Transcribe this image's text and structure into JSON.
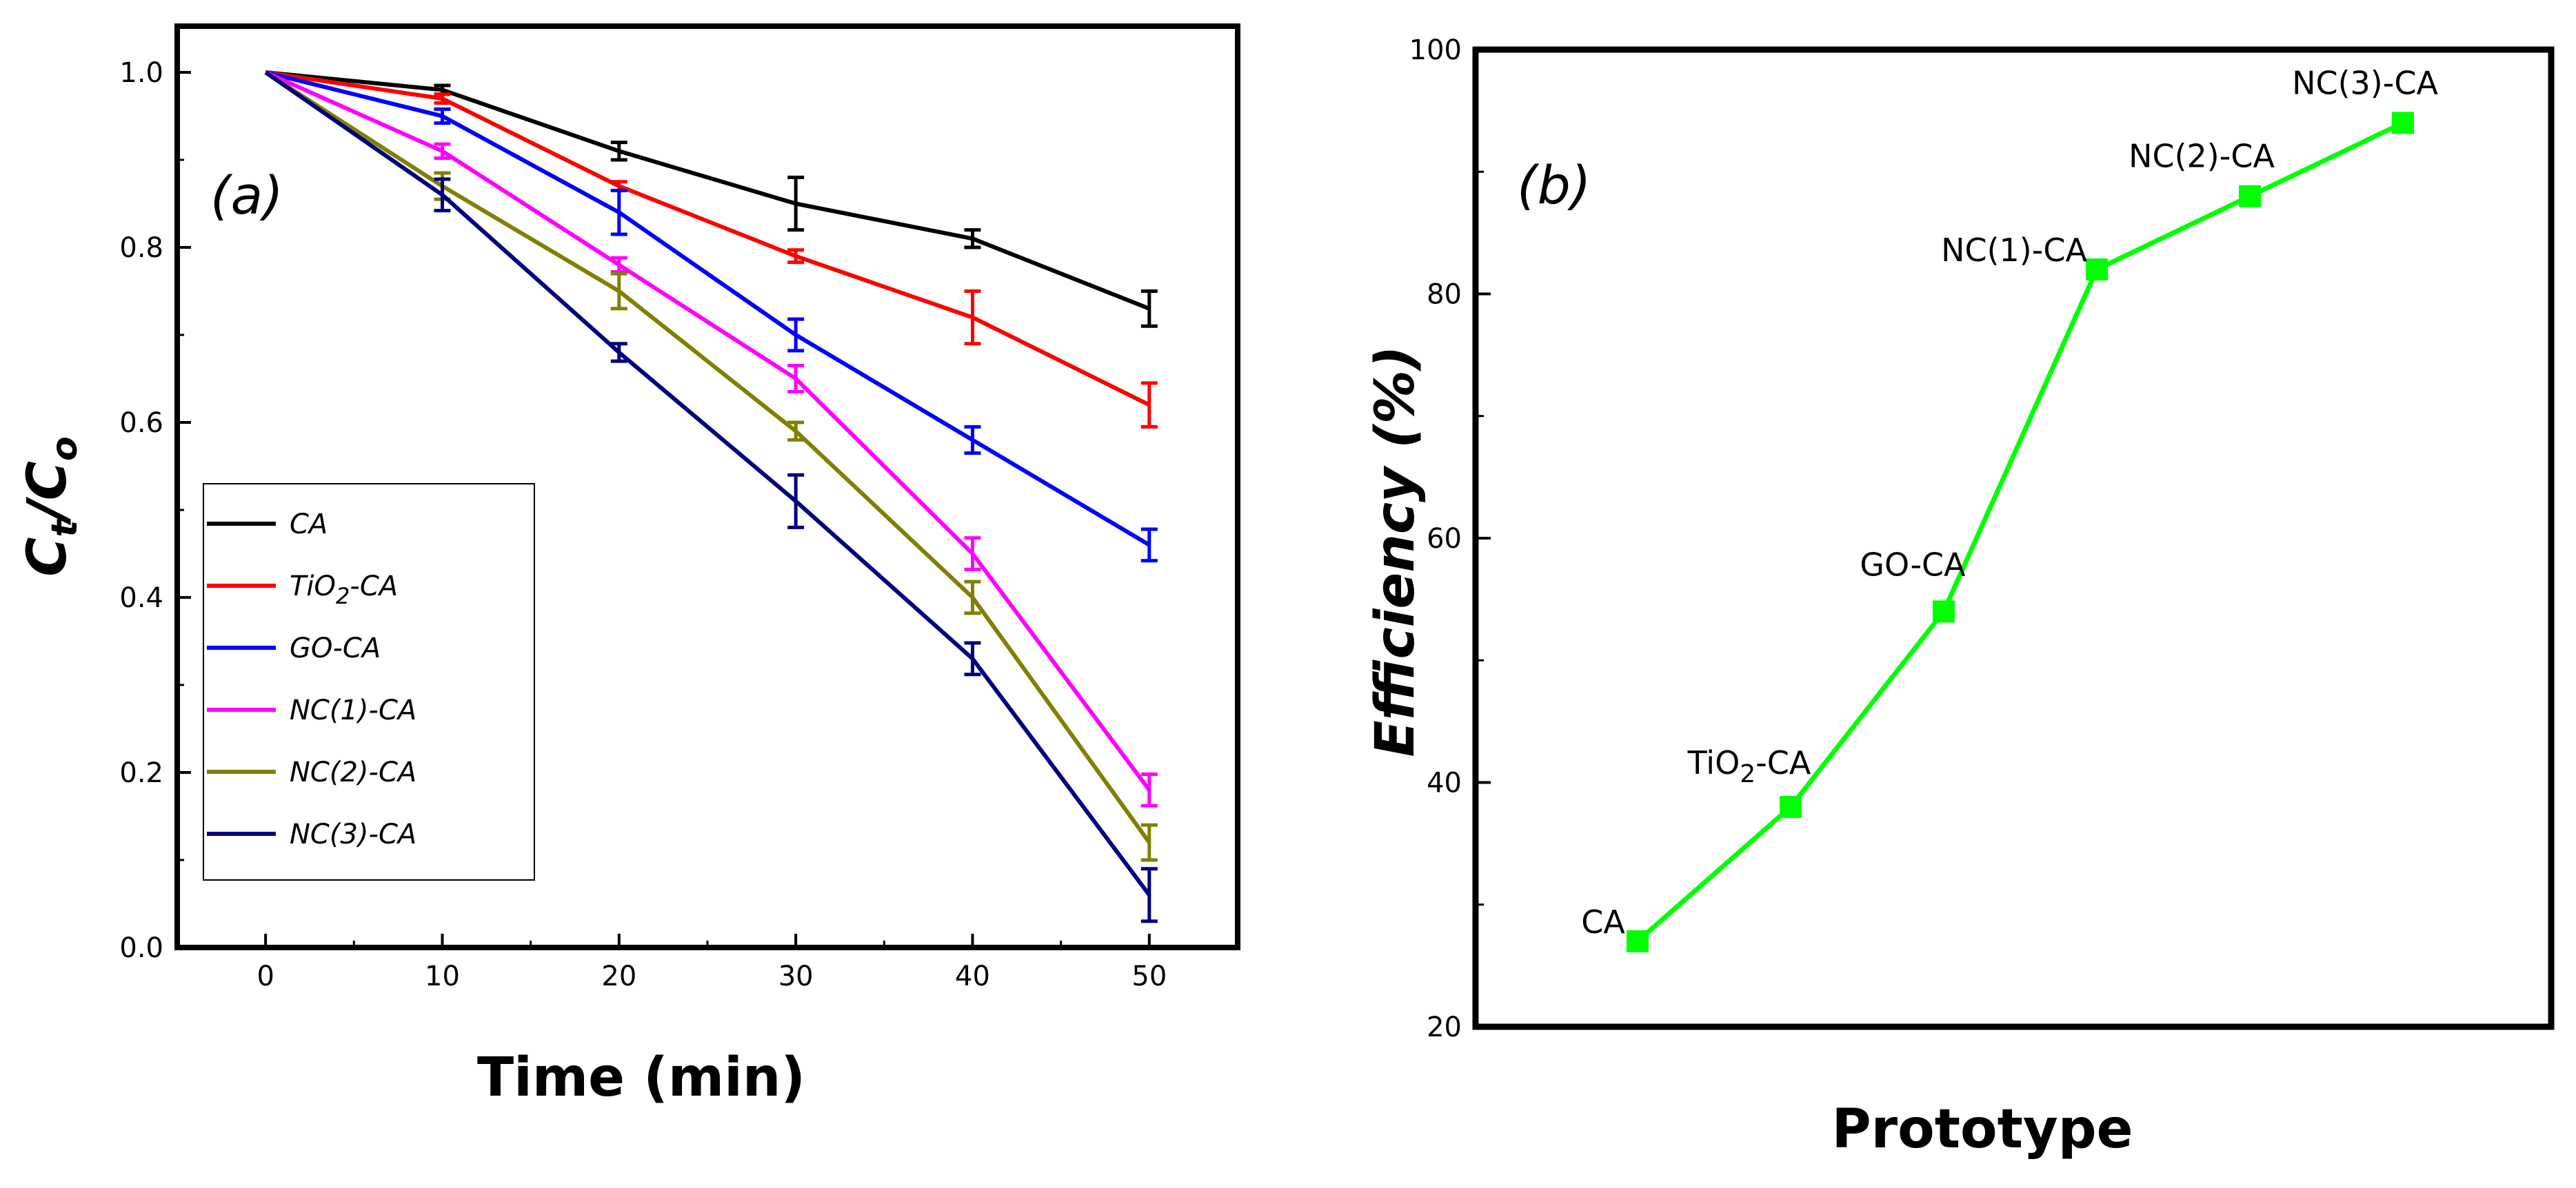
{
  "chart_data": [
    {
      "type": "line",
      "panel_label": "(a)",
      "xlabel": "Time (min)",
      "ylabel": "Ct/Co",
      "ylabel_main": "C",
      "ylabel_sub1": "t",
      "ylabel_slash": "/",
      "ylabel_sub2": "o",
      "xlim": [
        -5,
        55
      ],
      "ylim": [
        0,
        1
      ],
      "xticks": [
        0,
        10,
        20,
        30,
        40,
        50
      ],
      "xtick_labels": [
        "0",
        "10",
        "20",
        "30",
        "40",
        "50"
      ],
      "yticks": [
        0,
        0.2,
        0.4,
        0.6,
        0.8,
        1.0
      ],
      "ytick_labels": [
        "0.0",
        "0.2",
        "0.4",
        "0.6",
        "0.8",
        "1.0"
      ],
      "grid": false,
      "legend_position": "left",
      "x": [
        0,
        10,
        20,
        30,
        40,
        50
      ],
      "series": [
        {
          "name": "CA",
          "label_parts": [
            "CA"
          ],
          "color": "#000000",
          "values": [
            1.0,
            0.98,
            0.91,
            0.85,
            0.81,
            0.73
          ],
          "errors": [
            0,
            0.005,
            0.01,
            0.03,
            0.01,
            0.02
          ]
        },
        {
          "name": "TiO2-CA",
          "label_parts": [
            "TiO",
            "2",
            "-CA"
          ],
          "color": "#ff0000",
          "values": [
            1.0,
            0.97,
            0.87,
            0.79,
            0.72,
            0.62
          ],
          "errors": [
            0,
            0.005,
            0.005,
            0.007,
            0.03,
            0.025
          ]
        },
        {
          "name": "GO-CA",
          "label_parts": [
            "GO-CA"
          ],
          "color": "#0000ff",
          "values": [
            1.0,
            0.95,
            0.84,
            0.7,
            0.58,
            0.46
          ],
          "errors": [
            0,
            0.008,
            0.025,
            0.018,
            0.015,
            0.018
          ]
        },
        {
          "name": "NC(1)-CA",
          "label_parts": [
            "NC(1)-CA"
          ],
          "color": "#ff00ff",
          "values": [
            1.0,
            0.91,
            0.78,
            0.65,
            0.45,
            0.18
          ],
          "errors": [
            0,
            0.008,
            0.008,
            0.015,
            0.018,
            0.018
          ]
        },
        {
          "name": "NC(2)-CA",
          "label_parts": [
            "NC(2)-CA"
          ],
          "color": "#808000",
          "values": [
            1.0,
            0.87,
            0.75,
            0.59,
            0.4,
            0.12
          ],
          "errors": [
            0,
            0.015,
            0.02,
            0.01,
            0.018,
            0.02
          ]
        },
        {
          "name": "NC(3)-CA",
          "label_parts": [
            "NC(3)-CA"
          ],
          "color": "#000080",
          "values": [
            1.0,
            0.86,
            0.68,
            0.51,
            0.33,
            0.06
          ],
          "errors": [
            0,
            0.018,
            0.01,
            0.03,
            0.018,
            0.03
          ]
        }
      ]
    },
    {
      "type": "line",
      "panel_label": "(b)",
      "xlabel": "Prototype",
      "ylabel": "Efficiency (%)",
      "ylim": [
        20,
        100
      ],
      "yticks": [
        20,
        40,
        60,
        80,
        100
      ],
      "ytick_labels": [
        "20",
        "40",
        "60",
        "80",
        "100"
      ],
      "grid": false,
      "color": "#00ff00",
      "categories": [
        "CA",
        "TiO2-CA",
        "GO-CA",
        "NC(1)-CA",
        "NC(2)-CA",
        "NC(3)-CA"
      ],
      "category_label_parts": [
        [
          "CA"
        ],
        [
          "TiO",
          "2",
          "-CA"
        ],
        [
          "GO-CA"
        ],
        [
          "NC(1)-CA"
        ],
        [
          "NC(2)-CA"
        ],
        [
          "NC(3)-CA"
        ]
      ],
      "values": [
        27,
        38,
        54,
        82,
        88,
        94
      ]
    }
  ]
}
